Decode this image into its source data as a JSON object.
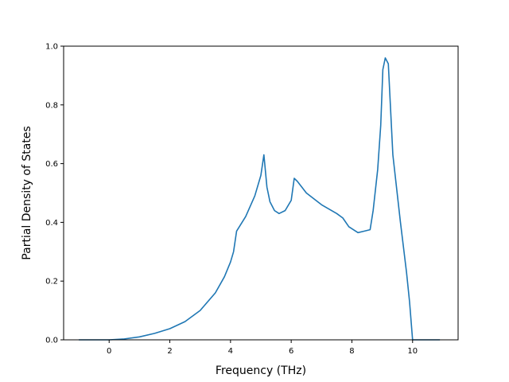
{
  "chart_data": {
    "type": "line",
    "title": "",
    "xlabel": "Frequency (THz)",
    "ylabel": "Partial Density of States",
    "xlim": [
      -1.5,
      11.5
    ],
    "ylim": [
      0.0,
      1.0
    ],
    "xticks": [
      0,
      2,
      4,
      6,
      8,
      10
    ],
    "yticks": [
      0.0,
      0.2,
      0.4,
      0.6,
      0.8,
      1.0
    ],
    "xtick_labels": [
      "0",
      "2",
      "4",
      "6",
      "8",
      "10"
    ],
    "ytick_labels": [
      "0.0",
      "0.2",
      "0.4",
      "0.6",
      "0.8",
      "1.0"
    ],
    "grid": false,
    "line_color": "#1f77b4",
    "series": [
      {
        "x": [
          -1.0,
          0.0,
          0.5,
          1.0,
          1.5,
          2.0,
          2.5,
          3.0,
          3.5,
          3.8,
          4.0,
          4.1,
          4.2,
          4.5,
          4.8,
          5.0,
          5.1,
          5.2,
          5.3,
          5.45,
          5.6,
          5.8,
          6.0,
          6.1,
          6.2,
          6.5,
          7.0,
          7.5,
          7.7,
          7.9,
          8.2,
          8.4,
          8.6,
          8.7,
          8.85,
          8.95,
          9.02,
          9.1,
          9.2,
          9.35,
          9.6,
          9.8,
          9.9,
          10.0,
          10.5,
          10.9
        ],
        "y": [
          0.0,
          0.0,
          0.003,
          0.01,
          0.022,
          0.038,
          0.062,
          0.1,
          0.16,
          0.215,
          0.265,
          0.3,
          0.37,
          0.42,
          0.49,
          0.56,
          0.63,
          0.52,
          0.47,
          0.44,
          0.43,
          0.44,
          0.475,
          0.55,
          0.54,
          0.5,
          0.46,
          0.43,
          0.415,
          0.385,
          0.365,
          0.37,
          0.375,
          0.44,
          0.58,
          0.73,
          0.92,
          0.96,
          0.94,
          0.63,
          0.4,
          0.23,
          0.13,
          0.0,
          0.0,
          0.0
        ]
      }
    ]
  }
}
